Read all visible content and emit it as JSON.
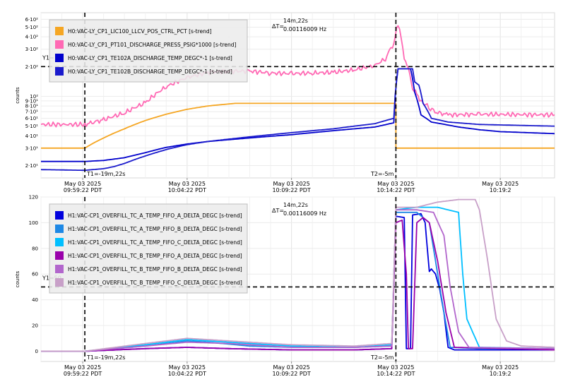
{
  "chart_data": [
    {
      "type": "line",
      "ylabel": "counts",
      "yscale": "log",
      "ylim": [
        15,
        700
      ],
      "y_ticks": [
        {
          "v": 20,
          "label": "2·10¹"
        },
        {
          "v": 30,
          "label": "3·10¹"
        },
        {
          "v": 40,
          "label": "4·10¹"
        },
        {
          "v": 50,
          "label": "5·10¹"
        },
        {
          "v": 60,
          "label": "6·10¹"
        },
        {
          "v": 70,
          "label": "7·10¹"
        },
        {
          "v": 80,
          "label": "8·10¹"
        },
        {
          "v": 90,
          "label": "9·10¹"
        },
        {
          "v": 100,
          "label": "10²"
        },
        {
          "v": 200,
          "label": "2·10²"
        },
        {
          "v": 300,
          "label": "3·10²"
        },
        {
          "v": 400,
          "label": "4·10²"
        },
        {
          "v": 500,
          "label": "5·10²"
        },
        {
          "v": 600,
          "label": "6·10²"
        }
      ],
      "x_ticks": [
        {
          "t": 2,
          "line1": "May 03 2025",
          "line2": "09:59:22 PDT"
        },
        {
          "t": 7,
          "line1": "May 03 2025",
          "line2": "10:04:22 PDT"
        },
        {
          "t": 12,
          "line1": "May 03 2025",
          "line2": "10:09:22 PDT"
        },
        {
          "t": 17,
          "line1": "May 03 2025",
          "line2": "10:14:22 PDT"
        },
        {
          "t": 22,
          "line1": "May 03 2025",
          "line2": "10:19:2"
        }
      ],
      "xlim": [
        0,
        24.6
      ],
      "cursor_y": {
        "v": 200,
        "label": "Y1="
      },
      "cursor_t1": {
        "t": 2.1,
        "label": "T1=-19m,22s"
      },
      "cursor_t2": {
        "t": 17,
        "label": "T2=-5m"
      },
      "delta": {
        "label": "ΔT=",
        "value": "14m,22s",
        "freq": "0.00116009 Hz"
      },
      "series": [
        {
          "name": "H0:VAC-LY_CP1_LIC100_LLCV_POS_CTRL_PCT [s-trend]",
          "color": "#f5a623",
          "points": [
            [
              0,
              30
            ],
            [
              2.1,
              30
            ],
            [
              3,
              38
            ],
            [
              4,
              47
            ],
            [
              5,
              57
            ],
            [
              6,
              66
            ],
            [
              7,
              74
            ],
            [
              8,
              80
            ],
            [
              9.3,
              85
            ],
            [
              10,
              85
            ],
            [
              13,
              85
            ],
            [
              16,
              85
            ],
            [
              17,
              85
            ],
            [
              17,
              30
            ],
            [
              20,
              30
            ],
            [
              24.6,
              30
            ]
          ]
        },
        {
          "name": "H0:VAC-LY_CP1_PT101_DISCHARGE_PRESS_PSIG*1000 [s-trend]",
          "color": "#ff69b4",
          "points": [
            [
              0,
              52
            ],
            [
              2.1,
              52
            ],
            [
              3,
              58
            ],
            [
              4,
              68
            ],
            [
              5,
              86
            ],
            [
              6,
              125
            ],
            [
              7,
              155
            ],
            [
              8,
              175
            ],
            [
              9,
              180
            ],
            [
              10,
              180
            ],
            [
              11,
              172
            ],
            [
              12,
              170
            ],
            [
              13,
              172
            ],
            [
              14,
              175
            ],
            [
              15,
              185
            ],
            [
              16,
              205
            ],
            [
              16.5,
              240
            ],
            [
              16.9,
              340
            ],
            [
              17.1,
              530
            ],
            [
              17.4,
              250
            ],
            [
              17.8,
              120
            ],
            [
              18.2,
              90
            ],
            [
              18.8,
              70
            ],
            [
              19.5,
              65
            ],
            [
              21,
              66
            ],
            [
              24.6,
              65
            ]
          ]
        },
        {
          "name": "H0:VAC-LY_CP1_TE102A_DISCHARGE_TEMP_DEGC*-1 [s-trend]",
          "color": "#0000cc",
          "points": [
            [
              0,
              22
            ],
            [
              2.1,
              22
            ],
            [
              3,
              22.5
            ],
            [
              4,
              24
            ],
            [
              5,
              27
            ],
            [
              6,
              30.5
            ],
            [
              7,
              33
            ],
            [
              8,
              35
            ],
            [
              9,
              36.5
            ],
            [
              10,
              38
            ],
            [
              11,
              39.5
            ],
            [
              12,
              41
            ],
            [
              13,
              43
            ],
            [
              14,
              45
            ],
            [
              15,
              47
            ],
            [
              16,
              49
            ],
            [
              16.9,
              54
            ],
            [
              17.1,
              190
            ],
            [
              17.7,
              190
            ],
            [
              17.9,
              110
            ],
            [
              18.2,
              65
            ],
            [
              18.7,
              55
            ],
            [
              20,
              49
            ],
            [
              21,
              46
            ],
            [
              22,
              44
            ],
            [
              24.6,
              42
            ]
          ]
        },
        {
          "name": "H0:VAC-LY_CP1_TE102B_DISCHARGE_TEMP_DEGC*-1 [s-trend]",
          "color": "#1a1acc",
          "points": [
            [
              0,
              18.2
            ],
            [
              2.1,
              17.9
            ],
            [
              3,
              18.6
            ],
            [
              3.5,
              19.5
            ],
            [
              4,
              21
            ],
            [
              5,
              25
            ],
            [
              6,
              29
            ],
            [
              7,
              32.5
            ],
            [
              8,
              35
            ],
            [
              9,
              37
            ],
            [
              10,
              39
            ],
            [
              11,
              41
            ],
            [
              12,
              43
            ],
            [
              13,
              45
            ],
            [
              14,
              47
            ],
            [
              15,
              50
            ],
            [
              16,
              53
            ],
            [
              16.9,
              60
            ],
            [
              17.1,
              190
            ],
            [
              17.8,
              190
            ],
            [
              17.9,
              140
            ],
            [
              18.1,
              130
            ],
            [
              18.3,
              85
            ],
            [
              18.7,
              60
            ],
            [
              19.5,
              55
            ],
            [
              21,
              52
            ],
            [
              24.6,
              50
            ]
          ]
        }
      ]
    },
    {
      "type": "line",
      "ylabel": "counts",
      "ylim": [
        -8,
        120
      ],
      "y_ticks": [
        {
          "v": 0,
          "label": "0"
        },
        {
          "v": 20,
          "label": "20"
        },
        {
          "v": 40,
          "label": "40"
        },
        {
          "v": 60,
          "label": "60"
        },
        {
          "v": 80,
          "label": "80"
        },
        {
          "v": 100,
          "label": "100"
        },
        {
          "v": 120,
          "label": "120"
        }
      ],
      "x_ticks": [
        {
          "t": 2,
          "line1": "May 03 2025",
          "line2": "09:59:22 PDT"
        },
        {
          "t": 7,
          "line1": "May 03 2025",
          "line2": "10:04:22 PDT"
        },
        {
          "t": 12,
          "line1": "May 03 2025",
          "line2": "10:09:22 PDT"
        },
        {
          "t": 17,
          "line1": "May 03 2025",
          "line2": "10:14:22 PDT"
        },
        {
          "t": 22,
          "line1": "May 03 2025",
          "line2": "10:19:2"
        }
      ],
      "xlim": [
        0,
        24.6
      ],
      "cursor_y": {
        "v": 50,
        "label": "Y1=50"
      },
      "cursor_t1": {
        "t": 2.1,
        "label": "T1=-19m,22s"
      },
      "cursor_t2": {
        "t": 17,
        "label": "T2=-5m"
      },
      "delta": {
        "label": "ΔT=",
        "value": "14m,22s",
        "freq": "0.00116009 Hz"
      },
      "series": [
        {
          "name": "H1:VAC-CP1_OVERFILL_TC_A_TEMP_FIFO_A_DELTA_DEGC [s-trend]",
          "color": "#0000dd",
          "points": [
            [
              0,
              0
            ],
            [
              2.1,
              0
            ],
            [
              5,
              2
            ],
            [
              7,
              3
            ],
            [
              9,
              2
            ],
            [
              12,
              1
            ],
            [
              15,
              1
            ],
            [
              16.8,
              2
            ],
            [
              17,
              105
            ],
            [
              17.4,
              104
            ],
            [
              17.5,
              2
            ],
            [
              17.7,
              2
            ],
            [
              17.8,
              106
            ],
            [
              18.2,
              107
            ],
            [
              18.4,
              100
            ],
            [
              18.6,
              62
            ],
            [
              18.7,
              64
            ],
            [
              18.9,
              60
            ],
            [
              19.1,
              48
            ],
            [
              19.3,
              30
            ],
            [
              19.5,
              3
            ],
            [
              19.8,
              1
            ],
            [
              21,
              1
            ],
            [
              24.6,
              1
            ]
          ]
        },
        {
          "name": "H1:VAC-CP1_OVERFILL_TC_A_TEMP_FIFO_B_DELTA_DEGC [s-trend]",
          "color": "#1e88e5",
          "points": [
            [
              0,
              0
            ],
            [
              2.1,
              0
            ],
            [
              5,
              4
            ],
            [
              7,
              8
            ],
            [
              8,
              7
            ],
            [
              10,
              4
            ],
            [
              12,
              3
            ],
            [
              15,
              3
            ],
            [
              16.8,
              4
            ],
            [
              17,
              108
            ],
            [
              18,
              108
            ],
            [
              18.6,
              100
            ],
            [
              19,
              60
            ],
            [
              19.3,
              30
            ],
            [
              19.6,
              3
            ],
            [
              21,
              2
            ],
            [
              24.6,
              2
            ]
          ]
        },
        {
          "name": "H1:VAC-CP1_OVERFILL_TC_A_TEMP_FIFO_C_DELTA_DEGC [s-trend]",
          "color": "#00bfff",
          "points": [
            [
              0,
              0
            ],
            [
              2.1,
              0
            ],
            [
              5,
              5
            ],
            [
              7,
              9
            ],
            [
              9,
              7
            ],
            [
              12,
              4
            ],
            [
              15,
              3
            ],
            [
              16.8,
              5
            ],
            [
              17,
              110
            ],
            [
              18,
              112
            ],
            [
              19,
              112
            ],
            [
              19.5,
              110
            ],
            [
              20,
              108
            ],
            [
              20.2,
              60
            ],
            [
              20.4,
              25
            ],
            [
              21,
              3
            ],
            [
              24.6,
              2
            ]
          ]
        },
        {
          "name": "H1:VAC-CP1_OVERFILL_TC_B_TEMP_FIFO_A_DELTA_DEGC [s-trend]",
          "color": "#9900aa",
          "points": [
            [
              0,
              0
            ],
            [
              2.1,
              0
            ],
            [
              5,
              2
            ],
            [
              7,
              3
            ],
            [
              9,
              2
            ],
            [
              12,
              1
            ],
            [
              15,
              1
            ],
            [
              16.8,
              2
            ],
            [
              17,
              100
            ],
            [
              17.3,
              102
            ],
            [
              17.5,
              60
            ],
            [
              17.6,
              2
            ],
            [
              17.8,
              2
            ],
            [
              18,
              100
            ],
            [
              18.3,
              104
            ],
            [
              18.6,
              100
            ],
            [
              19,
              70
            ],
            [
              19.4,
              30
            ],
            [
              19.8,
              3
            ],
            [
              24.6,
              1
            ]
          ]
        },
        {
          "name": "H1:VAC-CP1_OVERFILL_TC_B_TEMP_FIFO_B_DELTA_DEGC [s-trend]",
          "color": "#b266cc",
          "points": [
            [
              0,
              0
            ],
            [
              2.1,
              0
            ],
            [
              5,
              4
            ],
            [
              7,
              7
            ],
            [
              9,
              6
            ],
            [
              12,
              3
            ],
            [
              15,
              3
            ],
            [
              16.8,
              4
            ],
            [
              17,
              110
            ],
            [
              18,
              110
            ],
            [
              18.8,
              108
            ],
            [
              19.3,
              90
            ],
            [
              19.6,
              50
            ],
            [
              20,
              15
            ],
            [
              20.5,
              3
            ],
            [
              24.6,
              2
            ]
          ]
        },
        {
          "name": "H1:VAC-CP1_OVERFILL_TC_B_TEMP_FIFO_C_DELTA_DEGC [s-trend]",
          "color": "#c8a0c8",
          "points": [
            [
              0,
              0
            ],
            [
              2.1,
              0
            ],
            [
              5,
              6
            ],
            [
              7,
              10
            ],
            [
              9,
              8
            ],
            [
              12,
              5
            ],
            [
              15,
              4
            ],
            [
              16.8,
              6
            ],
            [
              17,
              112
            ],
            [
              18,
              112
            ],
            [
              19,
              116
            ],
            [
              20,
              118
            ],
            [
              20.8,
              118
            ],
            [
              21,
              110
            ],
            [
              21.4,
              70
            ],
            [
              21.8,
              25
            ],
            [
              22.3,
              8
            ],
            [
              23,
              4
            ],
            [
              24.6,
              3
            ]
          ]
        }
      ]
    }
  ]
}
